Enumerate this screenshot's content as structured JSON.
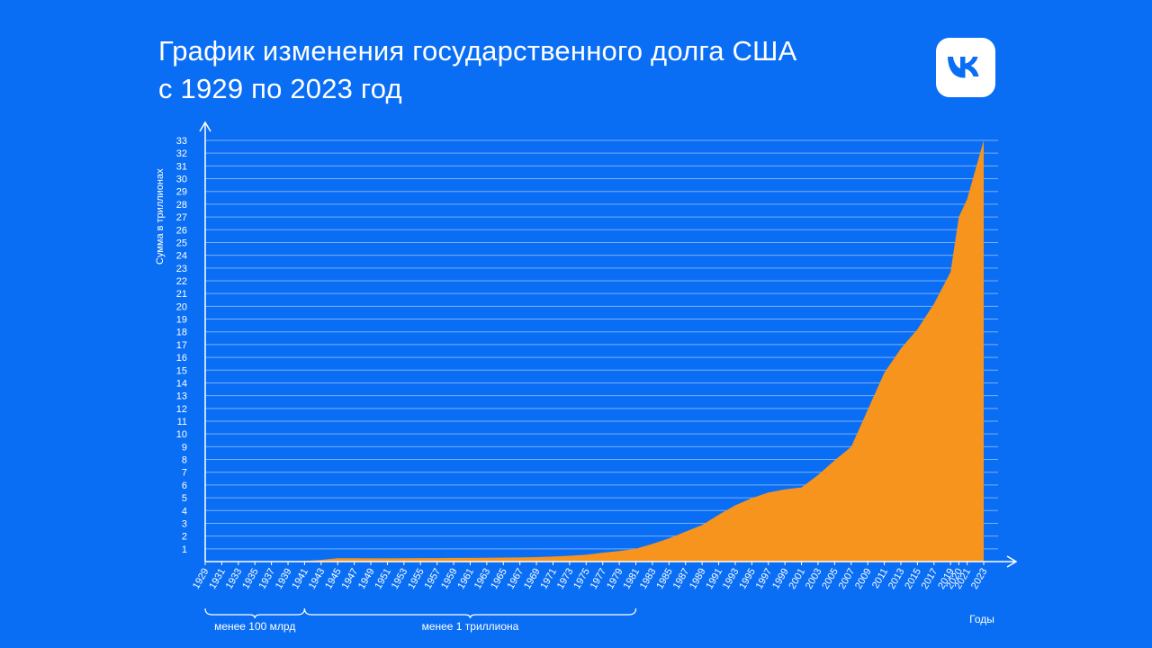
{
  "header": {
    "title_line1": "График изменения государственного долга США",
    "title_line2": "с 1929 по 2023 год",
    "logo_icon": "vk-logo-icon"
  },
  "colors": {
    "background": "#0a6ef5",
    "area": "#f7941d",
    "text": "#ffffff"
  },
  "chart_data": {
    "type": "area",
    "title": "График изменения государственного долга США с 1929 по 2023 год",
    "xlabel": "Годы",
    "ylabel": "Сумма в триллионах",
    "ylim": [
      0,
      33
    ],
    "grid": true,
    "x_ticks": [
      1929,
      1931,
      1933,
      1935,
      1937,
      1939,
      1941,
      1943,
      1945,
      1947,
      1949,
      1951,
      1953,
      1955,
      1957,
      1959,
      1961,
      1963,
      1965,
      1967,
      1969,
      1971,
      1973,
      1975,
      1977,
      1979,
      1981,
      1983,
      1985,
      1987,
      1989,
      1991,
      1993,
      1995,
      1997,
      1999,
      2001,
      2003,
      2005,
      2007,
      2009,
      2011,
      2013,
      2015,
      2017,
      2019,
      2020,
      2021,
      2023
    ],
    "y_ticks": [
      1,
      2,
      3,
      4,
      5,
      6,
      7,
      8,
      9,
      10,
      11,
      12,
      13,
      14,
      15,
      16,
      17,
      18,
      19,
      20,
      21,
      22,
      23,
      24,
      25,
      26,
      27,
      28,
      29,
      30,
      31,
      32,
      33
    ],
    "series": [
      {
        "x": [
          1929,
          1931,
          1933,
          1935,
          1937,
          1939,
          1941,
          1943,
          1945,
          1947,
          1949,
          1951,
          1953,
          1955,
          1957,
          1959,
          1961,
          1963,
          1965,
          1967,
          1969,
          1971,
          1973,
          1975,
          1977,
          1979,
          1981,
          1983,
          1985,
          1987,
          1989,
          1991,
          1993,
          1995,
          1997,
          1999,
          2001,
          2003,
          2005,
          2007,
          2009,
          2011,
          2013,
          2015,
          2017,
          2019,
          2020,
          2021,
          2023
        ],
        "values": [
          0.017,
          0.017,
          0.023,
          0.029,
          0.036,
          0.04,
          0.049,
          0.137,
          0.26,
          0.258,
          0.253,
          0.255,
          0.266,
          0.274,
          0.272,
          0.287,
          0.289,
          0.306,
          0.317,
          0.326,
          0.353,
          0.398,
          0.458,
          0.533,
          0.699,
          0.827,
          0.998,
          1.38,
          1.82,
          2.35,
          2.86,
          3.67,
          4.41,
          4.97,
          5.41,
          5.66,
          5.81,
          6.78,
          7.93,
          9.0,
          11.9,
          14.8,
          16.7,
          18.2,
          20.2,
          22.7,
          27.0,
          28.4,
          33.0
        ]
      }
    ],
    "brackets": [
      {
        "label": "менее 100 млрд",
        "from": 1929,
        "to": 1941
      },
      {
        "label": "менее 1 триллиона",
        "from": 1941,
        "to": 1981
      }
    ]
  }
}
